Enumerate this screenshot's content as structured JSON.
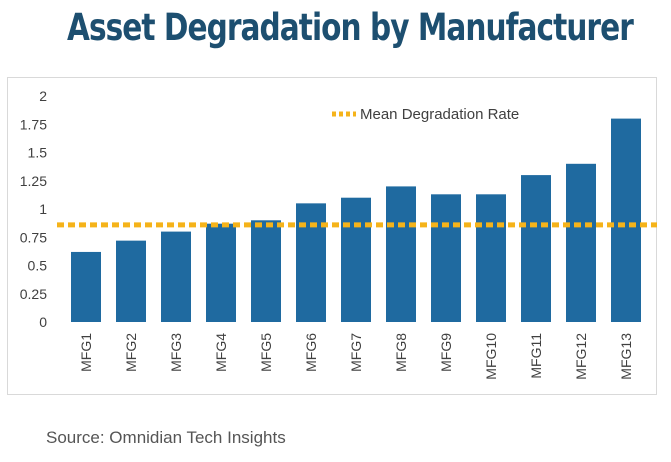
{
  "title": "Asset Degradation by Manufacturer",
  "source": "Source: Omnidian Tech Insights",
  "colors": {
    "title": "#1d4f70",
    "bar": "#1f6aa0",
    "mean_line": "#f5b31a",
    "axis_text": "#404040",
    "source_text": "#555555"
  },
  "chart_data": {
    "type": "bar",
    "categories": [
      "MFG1",
      "MFG2",
      "MFG3",
      "MFG4",
      "MFG5",
      "MFG6",
      "MFG7",
      "MFG8",
      "MFG9",
      "MFG10",
      "MFG11",
      "MFG12",
      "MFG13"
    ],
    "values": [
      0.62,
      0.72,
      0.8,
      0.87,
      0.9,
      1.05,
      1.1,
      1.2,
      1.13,
      1.13,
      1.3,
      1.4,
      1.8
    ],
    "ylim": [
      0,
      2
    ],
    "yticks": [
      "0",
      "0.25",
      "0.5",
      "0.75",
      "1",
      "1.25",
      "1.5",
      "1.75",
      "2"
    ],
    "mean_line": {
      "name": "Mean Degradation Rate",
      "value": 0.86
    },
    "legend_position": "top-right",
    "grid": false
  }
}
